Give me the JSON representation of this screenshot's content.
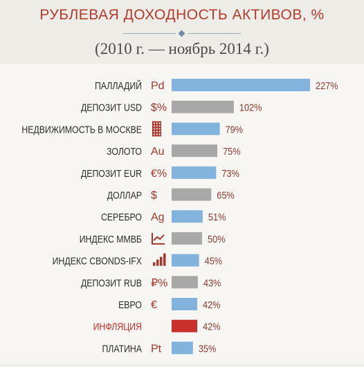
{
  "header": {
    "title": "РУБЛЕВАЯ ДОХОДНОСТЬ АКТИВОВ, %",
    "subtitle": "(2010 г. — ноябрь 2014 г.)"
  },
  "colors": {
    "title": "#b23a2e",
    "bar_blue": "#82b3dc",
    "bar_gray": "#a8a8a8",
    "bar_red": "#c8302b",
    "icon": "#a8362a",
    "label": "#2b2b2b",
    "value": "#8c3b30"
  },
  "chart_data": {
    "type": "bar",
    "orientation": "horizontal",
    "title": "РУБЛЕВАЯ ДОХОДНОСТЬ АКТИВОВ, %",
    "subtitle": "(2010 г. — ноябрь 2014 г.)",
    "categories": [
      "ПАЛЛАДИЙ",
      "ДЕПОЗИТ USD",
      "НЕДВИЖИМОСТЬ В МОСКВЕ",
      "ЗОЛОТО",
      "ДЕПОЗИТ EUR",
      "ДОЛЛАР",
      "СЕРЕБРО",
      "ИНДЕКС ММВБ",
      "ИНДЕКС CBONDS-IFX",
      "ДЕПОЗИТ RUB",
      "ЕВРО",
      "ИНФЛЯЦИЯ",
      "ПЛАТИНА"
    ],
    "values": [
      227,
      102,
      79,
      75,
      73,
      65,
      51,
      50,
      45,
      43,
      42,
      42,
      35
    ],
    "value_labels": [
      "227%",
      "102%",
      "79%",
      "75%",
      "73%",
      "65%",
      "51%",
      "50%",
      "45%",
      "43%",
      "42%",
      "42%",
      "35%"
    ],
    "icons": [
      {
        "type": "text",
        "text": "Pd"
      },
      {
        "type": "text",
        "text": "$%"
      },
      {
        "type": "icon",
        "name": "building-icon"
      },
      {
        "type": "text",
        "text": "Au"
      },
      {
        "type": "text",
        "text": "€%"
      },
      {
        "type": "text",
        "text": "$"
      },
      {
        "type": "text",
        "text": "Ag"
      },
      {
        "type": "icon",
        "name": "line-chart-icon"
      },
      {
        "type": "icon",
        "name": "bar-chart-icon"
      },
      {
        "type": "text",
        "text": "₽%"
      },
      {
        "type": "text",
        "text": "€"
      },
      {
        "type": "none"
      },
      {
        "type": "text",
        "text": "Pt"
      }
    ],
    "bar_colors": [
      "blue",
      "gray",
      "blue",
      "gray",
      "blue",
      "gray",
      "blue",
      "gray",
      "blue",
      "gray",
      "blue",
      "red",
      "blue"
    ],
    "highlight_category": "ИНФЛЯЦИЯ",
    "grid": false,
    "legend": "none"
  }
}
